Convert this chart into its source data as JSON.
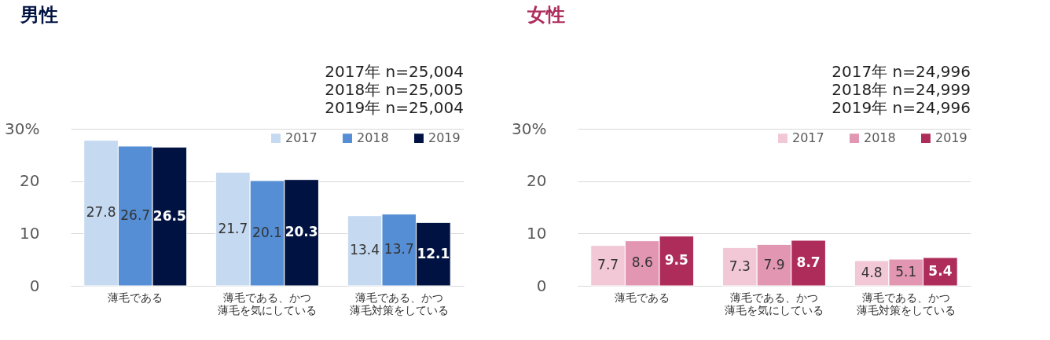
{
  "chart_data": [
    {
      "type": "bar",
      "title": "男性",
      "categories": [
        "薄毛である",
        "薄毛である、かつ薄毛を気にしている",
        "薄毛である、かつ薄毛対策をしている"
      ],
      "series": [
        {
          "name": "2017",
          "color": "#c5d9f1",
          "values": [
            27.8,
            21.7,
            13.4
          ]
        },
        {
          "name": "2018",
          "color": "#558ed5",
          "values": [
            26.7,
            20.1,
            13.7
          ]
        },
        {
          "name": "2019",
          "color": "#001242",
          "values": [
            26.5,
            20.3,
            12.1
          ]
        }
      ],
      "ylim": [
        0,
        30
      ],
      "yticks": [
        0,
        10,
        20,
        {
          "value": 30,
          "label": "30%"
        }
      ],
      "grid": "y",
      "legend": "top right",
      "data_labels": true,
      "annotations": [
        "2017年  n=25,004",
        "2018年  n=25,005",
        "2019年  n=25,004"
      ]
    },
    {
      "type": "bar",
      "title": "女性",
      "categories": [
        "薄毛である",
        "薄毛である、かつ薄毛を気にしている",
        "薄毛である、かつ薄毛対策をしている"
      ],
      "series": [
        {
          "name": "2017",
          "color": "#f2c7d6",
          "values": [
            7.7,
            7.3,
            4.8
          ]
        },
        {
          "name": "2018",
          "color": "#e296b2",
          "values": [
            8.6,
            7.9,
            5.1
          ]
        },
        {
          "name": "2019",
          "color": "#ae2c5a",
          "values": [
            9.5,
            8.7,
            5.4
          ]
        }
      ],
      "ylim": [
        0,
        30
      ],
      "yticks": [
        0,
        10,
        20,
        {
          "value": 30,
          "label": "30%"
        }
      ],
      "grid": "y",
      "legend": "top right",
      "data_labels": true,
      "annotations": [
        "2017年  n=24,996",
        "2018年  n=24,999",
        "2019年  n=24,996"
      ]
    }
  ]
}
